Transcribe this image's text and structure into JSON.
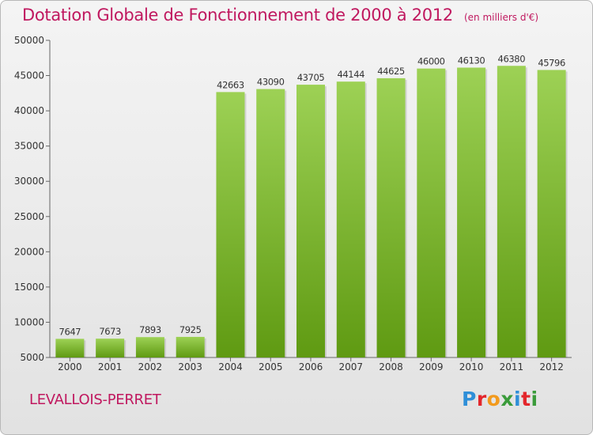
{
  "header": {
    "title": "Dotation Globale de Fonctionnement de 2000 à 2012",
    "subtitle": "(en milliers d'€)"
  },
  "footer": {
    "commune": "LEVALLOIS-PERRET",
    "logo_text": "Proxiti"
  },
  "colors": {
    "title": "#c0185f",
    "bar_top": "#9dd155",
    "bar_bottom": "#5f9a12",
    "axis": "#666666"
  },
  "chart_data": {
    "type": "bar",
    "categories": [
      "2000",
      "2001",
      "2002",
      "2003",
      "2004",
      "2005",
      "2006",
      "2007",
      "2008",
      "2009",
      "2010",
      "2011",
      "2012"
    ],
    "values": [
      7647,
      7673,
      7893,
      7925,
      42663,
      43090,
      43705,
      44144,
      44625,
      46000,
      46130,
      46380,
      45796
    ],
    "value_labels": [
      "7647",
      "7673",
      "7893",
      "7925",
      "42663",
      "43090",
      "43705",
      "44144",
      "44625",
      "46000",
      "46130",
      "46380",
      "45796"
    ],
    "y_ticks": [
      5000,
      10000,
      15000,
      20000,
      25000,
      30000,
      35000,
      40000,
      45000,
      50000
    ],
    "y_tick_labels": [
      "5000",
      "10000",
      "15000",
      "20000",
      "25000",
      "30000",
      "35000",
      "40000",
      "45000",
      "50000"
    ],
    "ylim": [
      5000,
      50000
    ],
    "grid": false,
    "title": "Dotation Globale de Fonctionnement de 2000 à 2012",
    "subtitle": "(en milliers d'€)"
  }
}
